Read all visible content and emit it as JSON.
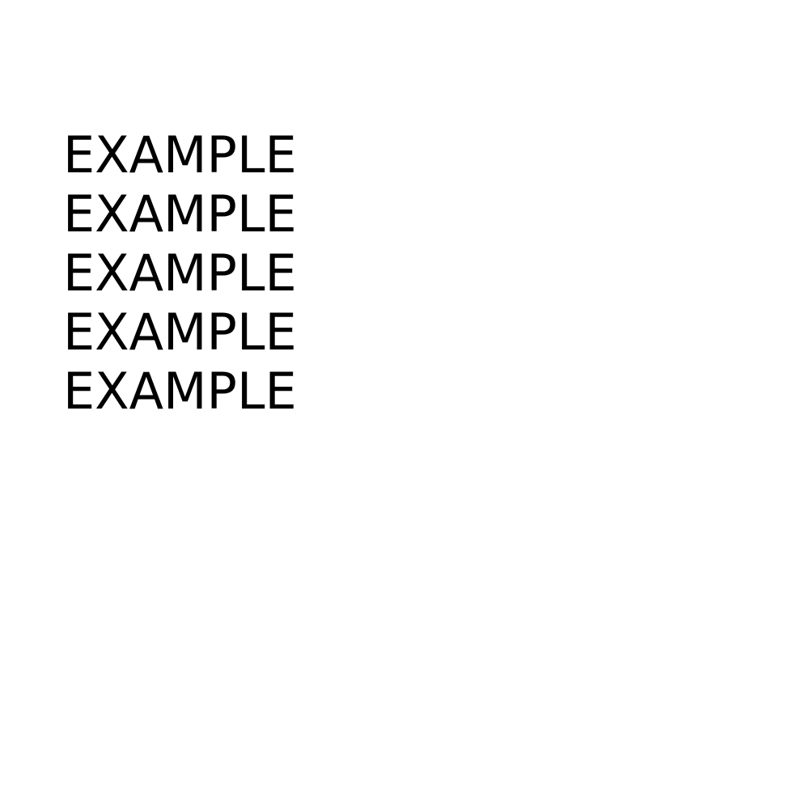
{
  "document": {
    "lines": [
      "EXAMPLE",
      "EXAMPLE",
      "EXAMPLE",
      "EXAMPLE",
      "EXAMPLE"
    ]
  },
  "colors": {
    "background": "#ffffff",
    "text": "#000000"
  }
}
